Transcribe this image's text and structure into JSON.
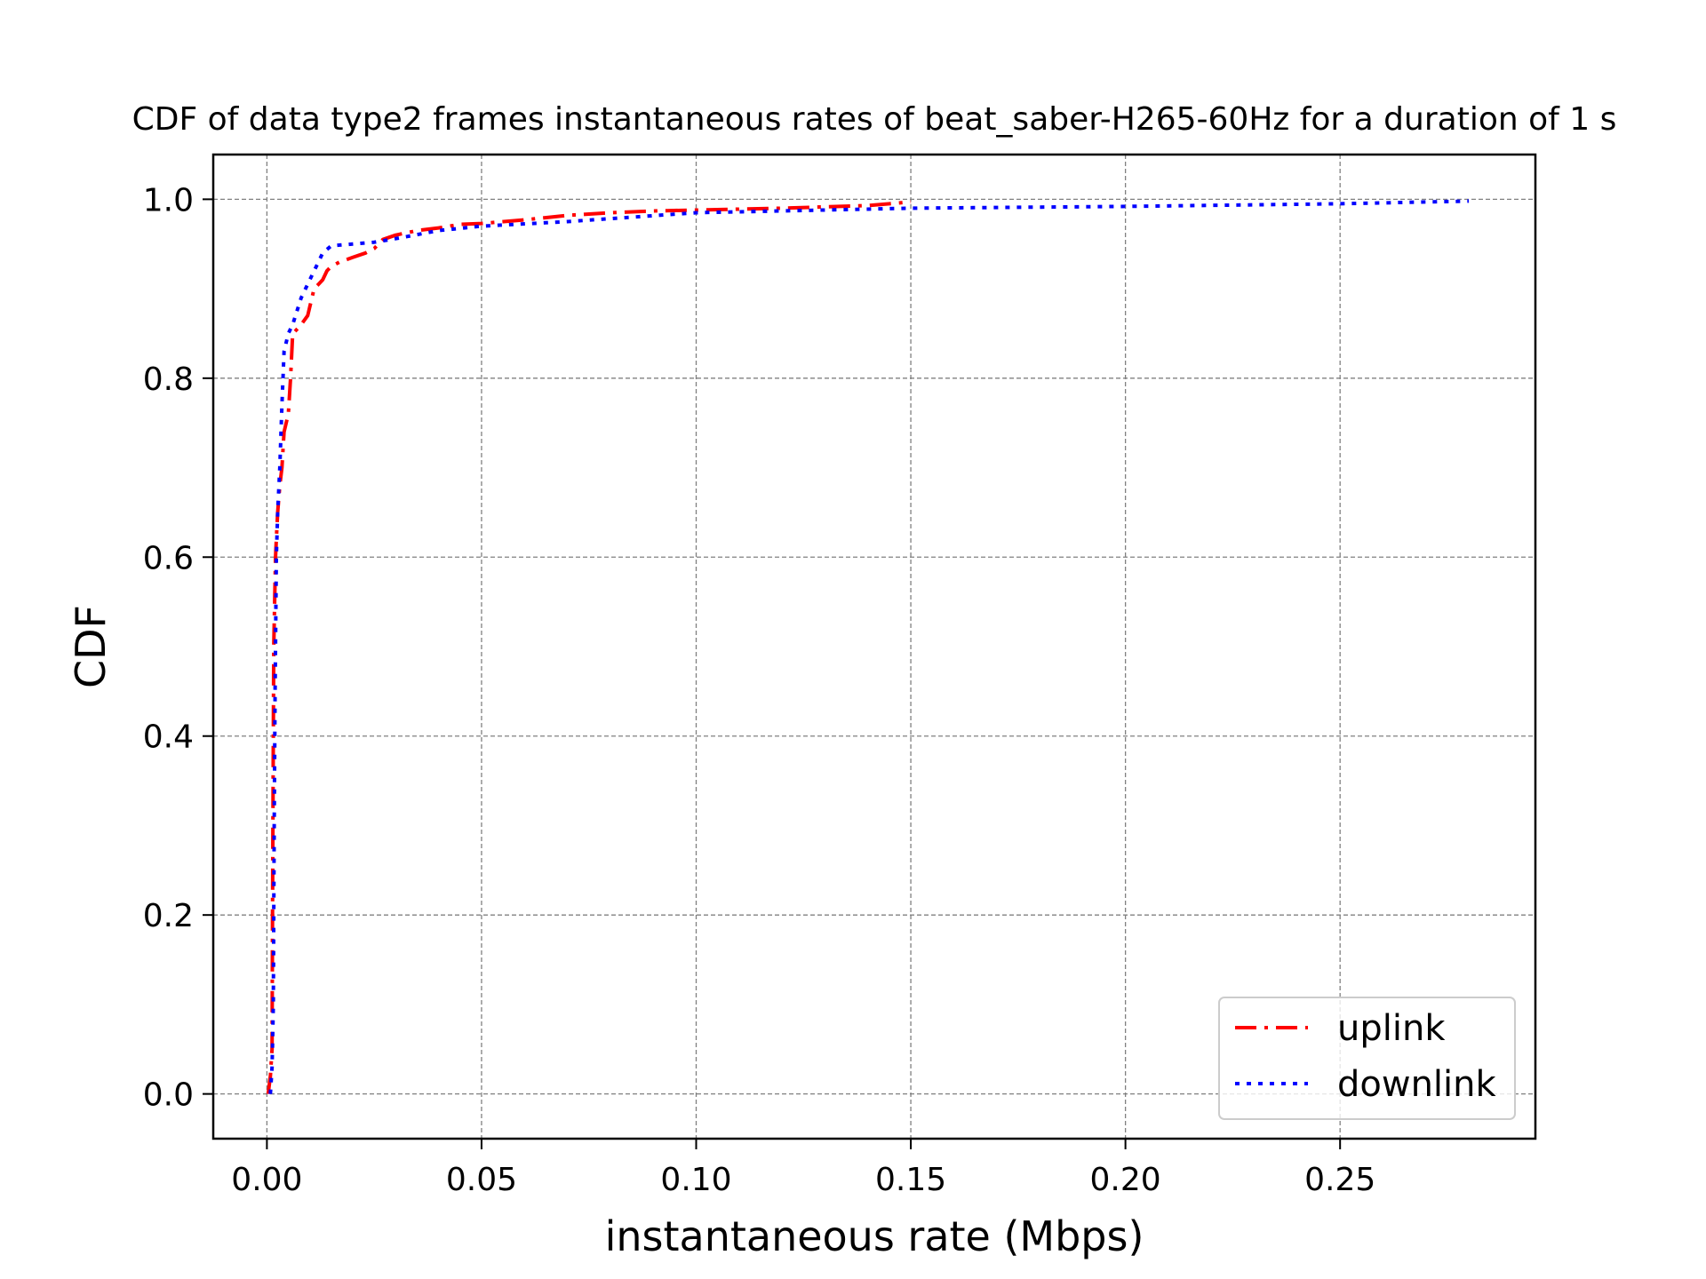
{
  "chart_data": {
    "type": "line",
    "title": "CDF of data type2 frames instantaneous rates of beat_saber-H265-60Hz for a duration of 1 s",
    "xlabel": "instantaneous rate (Mbps)",
    "ylabel": "CDF",
    "xlim": [
      -0.0125,
      0.2955
    ],
    "ylim": [
      -0.05,
      1.05
    ],
    "xticks": [
      0.0,
      0.05,
      0.1,
      0.15,
      0.2,
      0.25
    ],
    "xtick_labels": [
      "0.00",
      "0.05",
      "0.10",
      "0.15",
      "0.20",
      "0.25"
    ],
    "yticks": [
      0.0,
      0.2,
      0.4,
      0.6,
      0.8,
      1.0
    ],
    "ytick_labels": [
      "0.0",
      "0.2",
      "0.4",
      "0.6",
      "0.8",
      "1.0"
    ],
    "grid": true,
    "legend_position": "lower-right",
    "series": [
      {
        "name": "uplink",
        "color": "#ff0000",
        "style": "dashdot",
        "x": [
          0.0003,
          0.0008,
          0.0012,
          0.0013,
          0.0015,
          0.0016,
          0.0018,
          0.002,
          0.0022,
          0.0025,
          0.003,
          0.0035,
          0.004,
          0.0045,
          0.005,
          0.0055,
          0.006,
          0.0065,
          0.008,
          0.0095,
          0.011,
          0.012,
          0.013,
          0.014,
          0.015,
          0.017,
          0.02,
          0.023,
          0.025,
          0.027,
          0.03,
          0.035,
          0.04,
          0.045,
          0.05,
          0.06,
          0.07,
          0.08,
          0.09,
          0.1,
          0.12,
          0.14,
          0.15
        ],
        "y": [
          0.0,
          0.02,
          0.05,
          0.2,
          0.4,
          0.5,
          0.55,
          0.6,
          0.62,
          0.65,
          0.68,
          0.7,
          0.74,
          0.75,
          0.76,
          0.8,
          0.85,
          0.852,
          0.86,
          0.87,
          0.9,
          0.905,
          0.91,
          0.92,
          0.925,
          0.93,
          0.935,
          0.94,
          0.945,
          0.955,
          0.96,
          0.965,
          0.968,
          0.972,
          0.973,
          0.977,
          0.982,
          0.985,
          0.987,
          0.988,
          0.99,
          0.993,
          0.997
        ]
      },
      {
        "name": "downlink",
        "color": "#0000ff",
        "style": "dotted",
        "x": [
          0.0008,
          0.0012,
          0.0015,
          0.0017,
          0.0019,
          0.002,
          0.0022,
          0.0025,
          0.003,
          0.0035,
          0.004,
          0.005,
          0.006,
          0.008,
          0.01,
          0.012,
          0.013,
          0.015,
          0.02,
          0.025,
          0.03,
          0.04,
          0.05,
          0.07,
          0.1,
          0.15,
          0.2,
          0.25,
          0.28
        ],
        "y": [
          0.0,
          0.03,
          0.1,
          0.3,
          0.45,
          0.5,
          0.6,
          0.65,
          0.7,
          0.77,
          0.83,
          0.85,
          0.86,
          0.89,
          0.91,
          0.93,
          0.94,
          0.948,
          0.95,
          0.952,
          0.956,
          0.965,
          0.97,
          0.975,
          0.985,
          0.99,
          0.992,
          0.995,
          0.998
        ]
      }
    ]
  }
}
